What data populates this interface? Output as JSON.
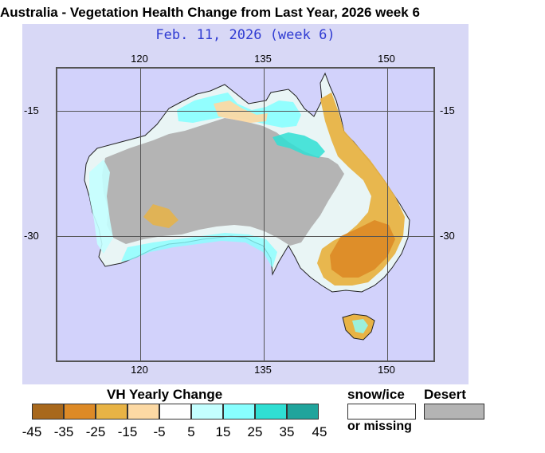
{
  "title": "Australia - Vegetation Health Change from Last Year, 2026 week 6",
  "map": {
    "date_label": "Feb. 11, 2026 (week 6)",
    "longitude_labels": [
      "120",
      "135",
      "150"
    ],
    "latitude_labels": [
      "-15",
      "-30"
    ],
    "colors": {
      "ocean": "#d2d2fb",
      "frame": "#d8d8f6",
      "desert": "#b4b4b4",
      "land_white": "#ffffff"
    }
  },
  "legend": {
    "title": "VH Yearly Change",
    "ticks": [
      "-45",
      "-35",
      "-25",
      "-15",
      "-5",
      "5",
      "15",
      "25",
      "35",
      "45"
    ],
    "bins": [
      {
        "color": "#a8681c"
      },
      {
        "color": "#dd8a26"
      },
      {
        "color": "#e8b345"
      },
      {
        "color": "#fcd9a4"
      },
      {
        "color": "#ffffff"
      },
      {
        "color": "#c4ffff"
      },
      {
        "color": "#88ffff"
      },
      {
        "color": "#2fdfd3"
      },
      {
        "color": "#20a49c"
      }
    ],
    "snow_label": "snow/ice",
    "missing_label": "or missing",
    "desert_label": "Desert",
    "snow_color": "#ffffff",
    "desert_color": "#b4b4b4"
  }
}
